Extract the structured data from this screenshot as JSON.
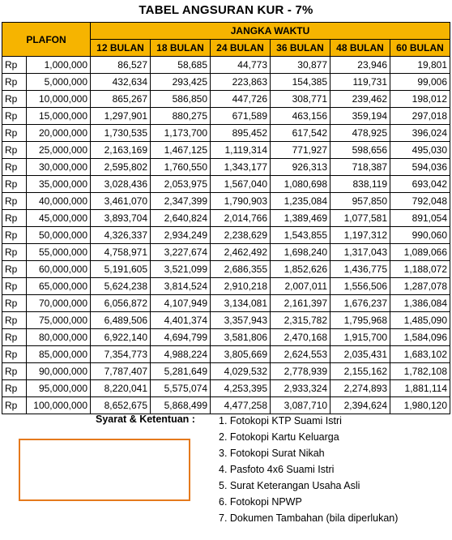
{
  "title": "TABEL ANGSURAN KUR - 7%",
  "table": {
    "plafon_label": "PLAFON",
    "jangka_label": "JANGKA  WAKTU",
    "months": [
      "12 BULAN",
      "18 BULAN",
      "24 BULAN",
      "36 BULAN",
      "48 BULAN",
      "60 BULAN"
    ],
    "currency": "Rp",
    "header_color": "#f6b400",
    "rows": [
      {
        "plafon": "1,000,000",
        "values": [
          "86,527",
          "58,685",
          "44,773",
          "30,877",
          "23,946",
          "19,801"
        ]
      },
      {
        "plafon": "5,000,000",
        "values": [
          "432,634",
          "293,425",
          "223,863",
          "154,385",
          "119,731",
          "99,006"
        ]
      },
      {
        "plafon": "10,000,000",
        "values": [
          "865,267",
          "586,850",
          "447,726",
          "308,771",
          "239,462",
          "198,012"
        ]
      },
      {
        "plafon": "15,000,000",
        "values": [
          "1,297,901",
          "880,275",
          "671,589",
          "463,156",
          "359,194",
          "297,018"
        ]
      },
      {
        "plafon": "20,000,000",
        "values": [
          "1,730,535",
          "1,173,700",
          "895,452",
          "617,542",
          "478,925",
          "396,024"
        ]
      },
      {
        "plafon": "25,000,000",
        "values": [
          "2,163,169",
          "1,467,125",
          "1,119,314",
          "771,927",
          "598,656",
          "495,030"
        ]
      },
      {
        "plafon": "30,000,000",
        "values": [
          "2,595,802",
          "1,760,550",
          "1,343,177",
          "926,313",
          "718,387",
          "594,036"
        ]
      },
      {
        "plafon": "35,000,000",
        "values": [
          "3,028,436",
          "2,053,975",
          "1,567,040",
          "1,080,698",
          "838,119",
          "693,042"
        ]
      },
      {
        "plafon": "40,000,000",
        "values": [
          "3,461,070",
          "2,347,399",
          "1,790,903",
          "1,235,084",
          "957,850",
          "792,048"
        ]
      },
      {
        "plafon": "45,000,000",
        "values": [
          "3,893,704",
          "2,640,824",
          "2,014,766",
          "1,389,469",
          "1,077,581",
          "891,054"
        ]
      },
      {
        "plafon": "50,000,000",
        "values": [
          "4,326,337",
          "2,934,249",
          "2,238,629",
          "1,543,855",
          "1,197,312",
          "990,060"
        ]
      },
      {
        "plafon": "55,000,000",
        "values": [
          "4,758,971",
          "3,227,674",
          "2,462,492",
          "1,698,240",
          "1,317,043",
          "1,089,066"
        ]
      },
      {
        "plafon": "60,000,000",
        "values": [
          "5,191,605",
          "3,521,099",
          "2,686,355",
          "1,852,626",
          "1,436,775",
          "1,188,072"
        ]
      },
      {
        "plafon": "65,000,000",
        "values": [
          "5,624,238",
          "3,814,524",
          "2,910,218",
          "2,007,011",
          "1,556,506",
          "1,287,078"
        ]
      },
      {
        "plafon": "70,000,000",
        "values": [
          "6,056,872",
          "4,107,949",
          "3,134,081",
          "2,161,397",
          "1,676,237",
          "1,386,084"
        ]
      },
      {
        "plafon": "75,000,000",
        "values": [
          "6,489,506",
          "4,401,374",
          "3,357,943",
          "2,315,782",
          "1,795,968",
          "1,485,090"
        ]
      },
      {
        "plafon": "80,000,000",
        "values": [
          "6,922,140",
          "4,694,799",
          "3,581,806",
          "2,470,168",
          "1,915,700",
          "1,584,096"
        ]
      },
      {
        "plafon": "85,000,000",
        "values": [
          "7,354,773",
          "4,988,224",
          "3,805,669",
          "2,624,553",
          "2,035,431",
          "1,683,102"
        ]
      },
      {
        "plafon": "90,000,000",
        "values": [
          "7,787,407",
          "5,281,649",
          "4,029,532",
          "2,778,939",
          "2,155,162",
          "1,782,108"
        ]
      },
      {
        "plafon": "95,000,000",
        "values": [
          "8,220,041",
          "5,575,074",
          "4,253,395",
          "2,933,324",
          "2,274,893",
          "1,881,114"
        ]
      },
      {
        "plafon": "100,000,000",
        "values": [
          "8,652,675",
          "5,868,499",
          "4,477,258",
          "3,087,710",
          "2,394,624",
          "1,980,120"
        ]
      }
    ]
  },
  "terms": {
    "label": "Syarat & Ketentuan :",
    "items": [
      "1. Fotokopi KTP Suami Istri",
      "2. Fotokopi Kartu Keluarga",
      "3. Fotokopi Surat Nikah",
      "4. Pasfoto 4x6 Suami Istri",
      "5. Surat Keterangan Usaha Asli",
      "6. Fotokopi NPWP",
      "7. Dokumen Tambahan (bila diperlukan)"
    ]
  },
  "box_color": "#e5791c"
}
